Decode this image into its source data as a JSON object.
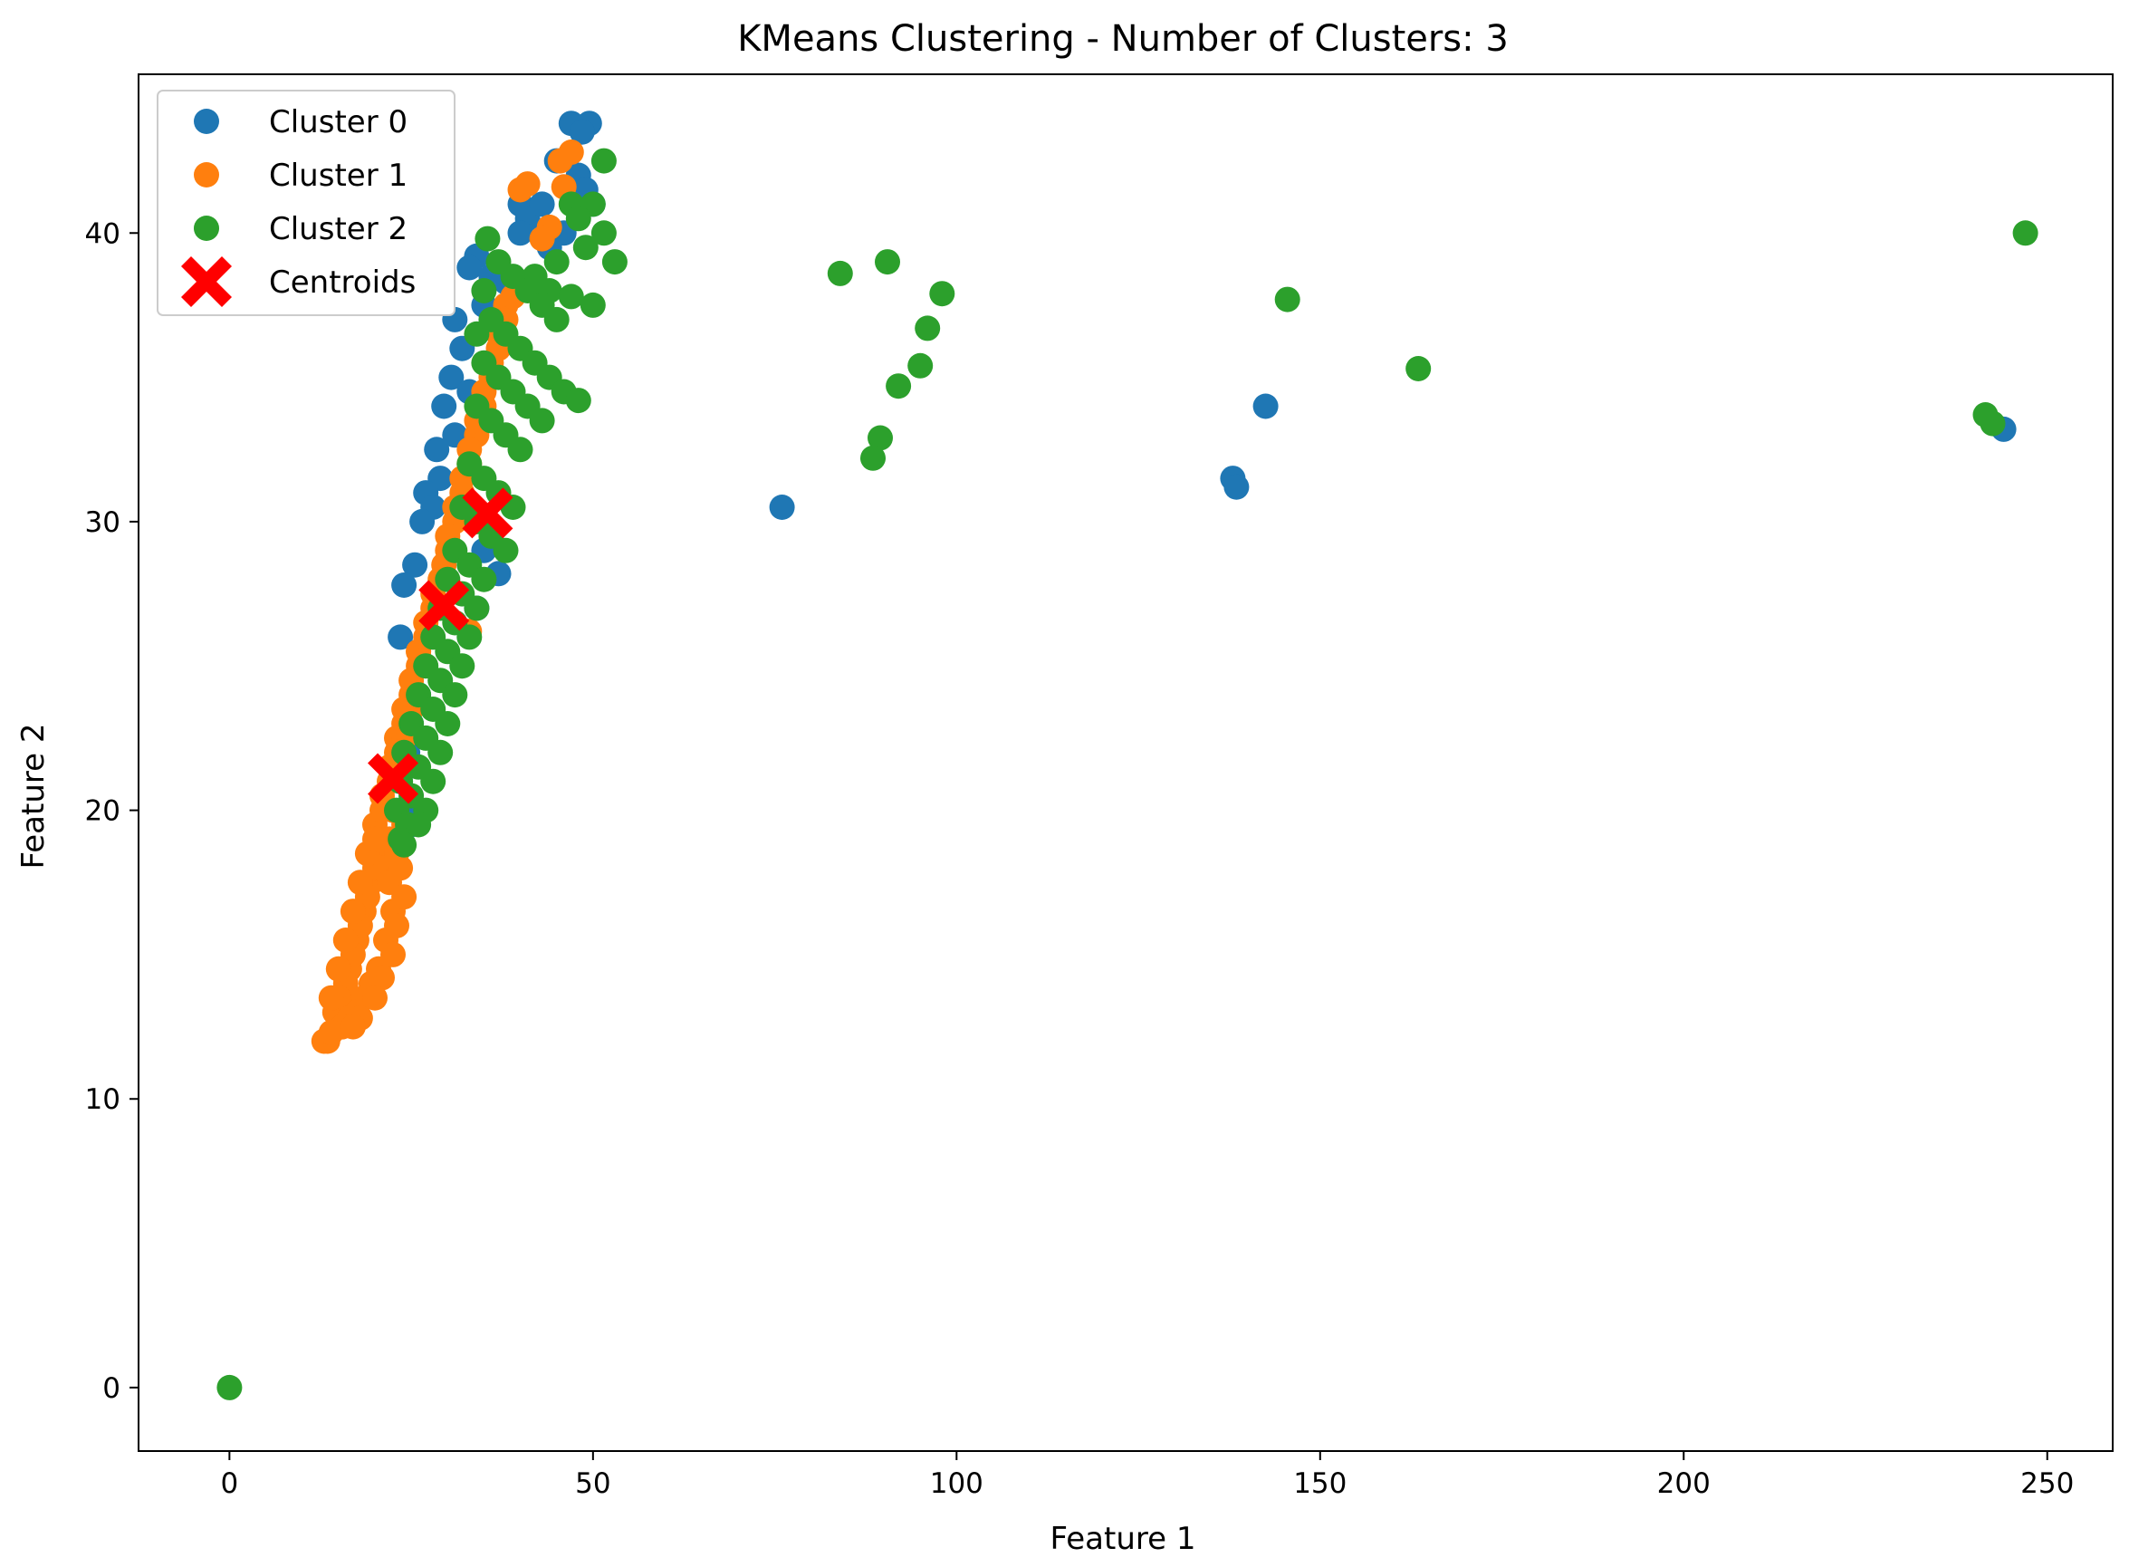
{
  "chart_data": {
    "type": "scatter",
    "title": "KMeans Clustering - Number of Clusters: 3",
    "xlabel": "Feature 1",
    "ylabel": "Feature 2",
    "xlim": [
      -12.5,
      259
    ],
    "ylim": [
      -2.2,
      45.5
    ],
    "xticks": [
      0,
      50,
      100,
      150,
      200,
      250
    ],
    "yticks": [
      0,
      10,
      20,
      30,
      40
    ],
    "grid": false,
    "legend_position": "top-left",
    "series": [
      {
        "name": "Cluster 0",
        "color": "#1f77b4",
        "points": [
          [
            47,
            43.8
          ],
          [
            49.5,
            43.8
          ],
          [
            48.5,
            43.5
          ],
          [
            45,
            42.5
          ],
          [
            48,
            42
          ],
          [
            49,
            41.5
          ],
          [
            50,
            41
          ],
          [
            40,
            41
          ],
          [
            41,
            40.5
          ],
          [
            43,
            41
          ],
          [
            40,
            40
          ],
          [
            46,
            40
          ],
          [
            44,
            39.5
          ],
          [
            34,
            39.2
          ],
          [
            33,
            38.8
          ],
          [
            36,
            38.5
          ],
          [
            38,
            38.3
          ],
          [
            35,
            37.5
          ],
          [
            31,
            37
          ],
          [
            32,
            36
          ],
          [
            30.5,
            35
          ],
          [
            33,
            34.5
          ],
          [
            29.5,
            34
          ],
          [
            31,
            33
          ],
          [
            28.5,
            32.5
          ],
          [
            29,
            31.5
          ],
          [
            27,
            31
          ],
          [
            28,
            30.5
          ],
          [
            26.5,
            30
          ],
          [
            35,
            29
          ],
          [
            25.5,
            28.5
          ],
          [
            37,
            28.2
          ],
          [
            24,
            27.8
          ],
          [
            34,
            27
          ],
          [
            23.5,
            26
          ],
          [
            26,
            24
          ],
          [
            25,
            23
          ],
          [
            24.5,
            22
          ],
          [
            23.5,
            21
          ],
          [
            24,
            20
          ],
          [
            25,
            19.5
          ],
          [
            76,
            30.5
          ],
          [
            138,
            31.5
          ],
          [
            138.5,
            31.2
          ],
          [
            142.5,
            34
          ],
          [
            244,
            33.2
          ]
        ]
      },
      {
        "name": "Cluster 1",
        "color": "#ff7f0e",
        "points": [
          [
            40,
            41.5
          ],
          [
            41,
            41.7
          ],
          [
            46,
            41.6
          ],
          [
            47,
            42.8
          ],
          [
            45.5,
            42.5
          ],
          [
            44,
            40.2
          ],
          [
            43,
            39.8
          ],
          [
            38,
            37.5
          ],
          [
            37,
            36.5
          ],
          [
            36,
            35.5
          ],
          [
            35,
            34
          ],
          [
            34,
            33
          ],
          [
            33,
            32
          ],
          [
            32,
            31
          ],
          [
            31,
            30
          ],
          [
            30,
            29
          ],
          [
            29.5,
            28.5
          ],
          [
            28,
            27.5
          ],
          [
            27,
            26.5
          ],
          [
            26,
            25.5
          ],
          [
            25,
            24.5
          ],
          [
            24,
            23.5
          ],
          [
            23,
            22.5
          ],
          [
            22,
            21.5
          ],
          [
            21,
            20.5
          ],
          [
            20,
            19.5
          ],
          [
            26,
            25
          ],
          [
            25,
            23.5
          ],
          [
            24,
            22.5
          ],
          [
            23,
            21.2
          ],
          [
            22.5,
            20
          ],
          [
            21.5,
            19
          ],
          [
            20.5,
            18.5
          ],
          [
            19.5,
            17.5
          ],
          [
            18.5,
            16.5
          ],
          [
            17.5,
            15.5
          ],
          [
            16.5,
            14.5
          ],
          [
            15.5,
            13.5
          ],
          [
            14.5,
            13
          ],
          [
            13.5,
            12
          ],
          [
            20,
            18
          ],
          [
            19,
            17
          ],
          [
            18,
            16
          ],
          [
            17,
            15
          ],
          [
            16,
            14
          ],
          [
            15,
            13.5
          ],
          [
            22,
            19
          ],
          [
            21,
            18
          ],
          [
            22,
            17.5
          ],
          [
            23,
            18.5
          ],
          [
            24,
            19.5
          ],
          [
            22.5,
            16.5
          ],
          [
            21.5,
            15.5
          ],
          [
            20.5,
            14.5
          ],
          [
            19.5,
            14
          ],
          [
            18.5,
            13.5
          ],
          [
            17.5,
            13
          ],
          [
            16.5,
            12.8
          ],
          [
            15.5,
            12.5
          ],
          [
            14,
            13.5
          ],
          [
            15,
            14.5
          ],
          [
            16,
            15.5
          ],
          [
            17,
            16.5
          ],
          [
            18,
            17.5
          ],
          [
            19,
            18.5
          ],
          [
            20,
            19
          ],
          [
            21,
            20
          ],
          [
            22,
            21
          ],
          [
            23,
            22
          ],
          [
            24,
            23
          ],
          [
            25,
            24
          ],
          [
            26,
            25.5
          ],
          [
            27,
            26
          ],
          [
            28,
            27
          ],
          [
            33,
            26.2
          ],
          [
            29,
            28
          ],
          [
            30,
            29.5
          ],
          [
            31,
            30.5
          ],
          [
            32,
            31.5
          ],
          [
            33,
            32.5
          ],
          [
            34,
            33.5
          ],
          [
            35,
            34.5
          ],
          [
            36,
            35
          ],
          [
            37,
            36
          ],
          [
            38,
            37
          ],
          [
            39,
            37.8
          ],
          [
            13,
            12
          ],
          [
            14,
            12.3
          ],
          [
            23.5,
            18
          ],
          [
            24,
            17
          ],
          [
            23,
            16
          ],
          [
            22.5,
            15
          ],
          [
            21,
            14.2
          ],
          [
            20,
            13.5
          ],
          [
            18,
            12.8
          ],
          [
            17,
            12.5
          ]
        ]
      },
      {
        "name": "Cluster 2",
        "color": "#2ca02c",
        "points": [
          [
            51.5,
            42.5
          ],
          [
            47,
            41
          ],
          [
            50,
            41
          ],
          [
            48,
            40.5
          ],
          [
            51.5,
            40
          ],
          [
            49,
            39.5
          ],
          [
            53,
            39
          ],
          [
            45,
            39
          ],
          [
            42,
            38.5
          ],
          [
            44,
            38
          ],
          [
            47,
            37.8
          ],
          [
            50,
            37.5
          ],
          [
            35.5,
            39.8
          ],
          [
            37,
            39
          ],
          [
            39,
            38.5
          ],
          [
            41,
            38
          ],
          [
            43,
            37.5
          ],
          [
            45,
            37
          ],
          [
            35,
            38
          ],
          [
            36,
            37
          ],
          [
            38,
            36.5
          ],
          [
            40,
            36
          ],
          [
            42,
            35.5
          ],
          [
            44,
            35
          ],
          [
            46,
            34.5
          ],
          [
            48,
            34.2
          ],
          [
            34,
            36.5
          ],
          [
            35,
            35.5
          ],
          [
            37,
            35
          ],
          [
            39,
            34.5
          ],
          [
            41,
            34
          ],
          [
            43,
            33.5
          ],
          [
            34,
            34
          ],
          [
            36,
            33.5
          ],
          [
            38,
            33
          ],
          [
            40,
            32.5
          ],
          [
            33,
            32
          ],
          [
            35,
            31.5
          ],
          [
            37,
            31
          ],
          [
            39,
            30.5
          ],
          [
            32,
            30.5
          ],
          [
            34,
            30
          ],
          [
            36,
            29.5
          ],
          [
            38,
            29
          ],
          [
            31,
            29
          ],
          [
            33,
            28.5
          ],
          [
            35,
            28
          ],
          [
            30,
            28
          ],
          [
            32,
            27.5
          ],
          [
            34,
            27
          ],
          [
            29,
            27
          ],
          [
            31,
            26.5
          ],
          [
            33,
            26
          ],
          [
            28,
            26
          ],
          [
            30,
            25.5
          ],
          [
            32,
            25
          ],
          [
            27,
            25
          ],
          [
            29,
            24.5
          ],
          [
            31,
            24
          ],
          [
            26,
            24
          ],
          [
            28,
            23.5
          ],
          [
            30,
            23
          ],
          [
            25,
            23
          ],
          [
            27,
            22.5
          ],
          [
            29,
            22
          ],
          [
            24,
            22
          ],
          [
            26,
            21.5
          ],
          [
            28,
            21
          ],
          [
            23.5,
            21
          ],
          [
            25,
            20.5
          ],
          [
            27,
            20
          ],
          [
            23,
            20
          ],
          [
            24.5,
            19.5
          ],
          [
            23.5,
            19
          ],
          [
            26,
            19.5
          ],
          [
            24,
            18.8
          ],
          [
            84,
            38.6
          ],
          [
            90.5,
            39
          ],
          [
            98,
            37.9
          ],
          [
            96,
            36.7
          ],
          [
            95,
            35.4
          ],
          [
            92,
            34.7
          ],
          [
            89.5,
            32.9
          ],
          [
            88.5,
            32.2
          ],
          [
            145.5,
            37.7
          ],
          [
            163.5,
            35.3
          ],
          [
            247,
            40
          ],
          [
            241.5,
            33.7
          ],
          [
            242.5,
            33.4
          ],
          [
            0,
            0
          ]
        ]
      }
    ],
    "centroids": {
      "name": "Centroids",
      "color": "#ff0000",
      "marker": "X",
      "points": [
        [
          35.5,
          30.3
        ],
        [
          29.5,
          27.1
        ],
        [
          22.5,
          21.1
        ]
      ]
    }
  }
}
